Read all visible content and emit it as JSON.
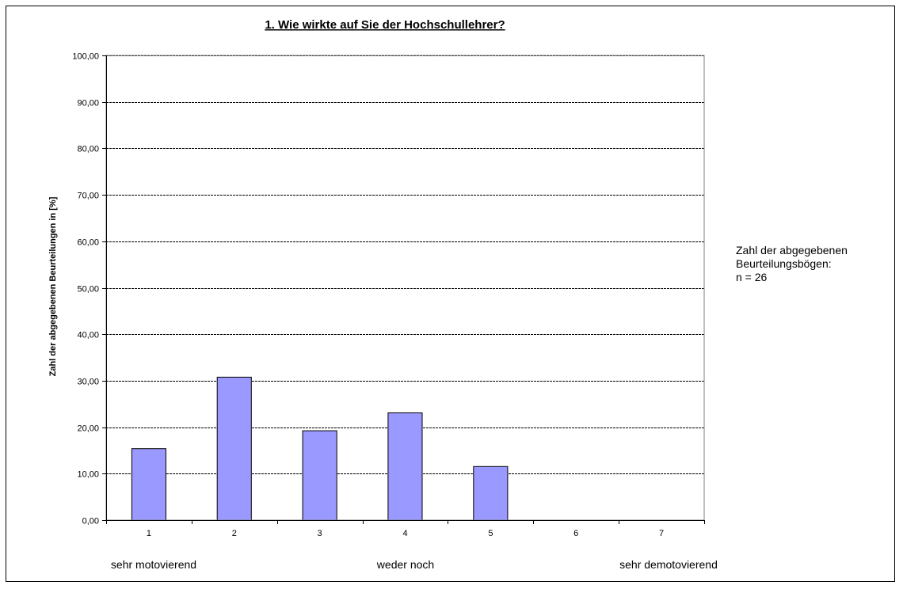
{
  "chart_data": {
    "type": "bar",
    "title": "1. Wie wirkte auf Sie der Hochschullehrer?",
    "xlabel": "",
    "ylabel": "Zahl der abgegebenen Beurteilungen in [%]",
    "categories": [
      "1",
      "2",
      "3",
      "4",
      "5",
      "6",
      "7"
    ],
    "values": [
      15.38,
      30.77,
      19.23,
      23.08,
      11.54,
      0,
      0
    ],
    "ylim": [
      0,
      100
    ],
    "ytick_step": 10,
    "ytick_labels": [
      "0,00",
      "10,00",
      "20,00",
      "30,00",
      "40,00",
      "50,00",
      "60,00",
      "70,00",
      "80,00",
      "90,00",
      "100,00"
    ],
    "scale_labels": {
      "left": "sehr motovierend",
      "middle": "weder noch",
      "right": "sehr demotovierend"
    },
    "grid": true,
    "legend": "none",
    "colors": {
      "bar_fill": "#9999ff",
      "bar_stroke": "#000000",
      "grid": "#000000",
      "plot_border": "#808080"
    }
  },
  "note": {
    "line1": "Zahl der abgegebenen",
    "line2": "Beurteilungsbögen:",
    "line3": "n = 26"
  }
}
